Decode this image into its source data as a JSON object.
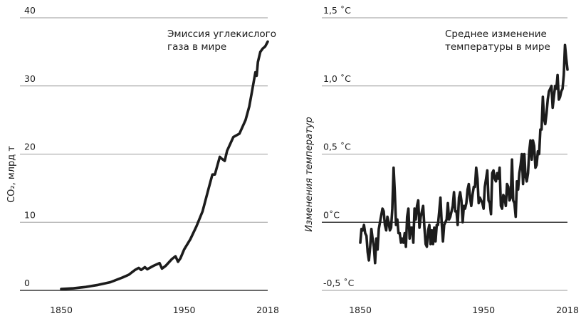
{
  "chart_data": [
    {
      "type": "line",
      "annotation": [
        "Эмиссия углекислого",
        "газа в мире"
      ],
      "ylabel": "CO₂, млрд т",
      "xlim": [
        1850,
        2018
      ],
      "ylim": [
        0,
        40
      ],
      "xticks": [
        1850,
        1950,
        2018
      ],
      "yticks": [
        {
          "value": 0,
          "label": "0"
        },
        {
          "value": 10,
          "label": "10"
        },
        {
          "value": 20,
          "label": "20"
        },
        {
          "value": 30,
          "label": "30"
        },
        {
          "value": 40,
          "label": "40"
        }
      ],
      "grid": "horizontal",
      "series": [
        {
          "x": [
            1850,
            1860,
            1870,
            1880,
            1890,
            1900,
            1905,
            1910,
            1913,
            1915,
            1918,
            1920,
            1925,
            1930,
            1932,
            1935,
            1940,
            1943,
            1945,
            1947,
            1950,
            1955,
            1960,
            1965,
            1970,
            1973,
            1975,
            1979,
            1980,
            1983,
            1985,
            1990,
            1995,
            2000,
            2003,
            2005,
            2008,
            2009,
            2010,
            2012,
            2014,
            2016,
            2018
          ],
          "y": [
            0.2,
            0.3,
            0.5,
            0.8,
            1.2,
            1.9,
            2.3,
            3.0,
            3.3,
            3.0,
            3.4,
            3.1,
            3.6,
            4.0,
            3.2,
            3.6,
            4.6,
            5.0,
            4.2,
            4.7,
            6.0,
            7.5,
            9.4,
            11.6,
            15.0,
            17.0,
            17.0,
            19.6,
            19.4,
            19.0,
            20.5,
            22.5,
            23.0,
            25.0,
            27.0,
            29.0,
            32.0,
            31.5,
            33.5,
            35.0,
            35.5,
            35.8,
            36.5
          ]
        }
      ]
    },
    {
      "type": "line",
      "annotation": [
        "Среднее изменение",
        "температуры в мире"
      ],
      "ylabel": "Изменения температур",
      "xlim": [
        1850,
        2018
      ],
      "ylim": [
        -0.5,
        1.5
      ],
      "xticks": [
        1850,
        1950,
        2018
      ],
      "yticks": [
        {
          "value": -0.5,
          "label": "-0,5 ˚C"
        },
        {
          "value": 0,
          "label": "0˚C"
        },
        {
          "value": 0.5,
          "label": "0,5 ˚C"
        },
        {
          "value": 1.0,
          "label": "1,0 ˚C"
        },
        {
          "value": 1.5,
          "label": "1,5 ˚C"
        }
      ],
      "grid": "horizontal",
      "series": [
        {
          "x": [
            1850,
            1851,
            1852,
            1853,
            1854,
            1855,
            1856,
            1857,
            1858,
            1859,
            1860,
            1861,
            1862,
            1863,
            1864,
            1865,
            1866,
            1867,
            1868,
            1869,
            1870,
            1871,
            1872,
            1873,
            1874,
            1875,
            1876,
            1877,
            1878,
            1879,
            1880,
            1881,
            1882,
            1883,
            1884,
            1885,
            1886,
            1887,
            1888,
            1889,
            1890,
            1891,
            1892,
            1893,
            1894,
            1895,
            1896,
            1897,
            1898,
            1899,
            1900,
            1901,
            1902,
            1903,
            1904,
            1905,
            1906,
            1907,
            1908,
            1909,
            1910,
            1911,
            1912,
            1913,
            1914,
            1915,
            1916,
            1917,
            1918,
            1919,
            1920,
            1921,
            1922,
            1923,
            1924,
            1925,
            1926,
            1927,
            1928,
            1929,
            1930,
            1931,
            1932,
            1933,
            1934,
            1935,
            1936,
            1937,
            1938,
            1939,
            1940,
            1941,
            1942,
            1943,
            1944,
            1945,
            1946,
            1947,
            1948,
            1949,
            1950,
            1951,
            1952,
            1953,
            1954,
            1955,
            1956,
            1957,
            1958,
            1959,
            1960,
            1961,
            1962,
            1963,
            1964,
            1965,
            1966,
            1967,
            1968,
            1969,
            1970,
            1971,
            1972,
            1973,
            1974,
            1975,
            1976,
            1977,
            1978,
            1979,
            1980,
            1981,
            1982,
            1983,
            1984,
            1985,
            1986,
            1987,
            1988,
            1989,
            1990,
            1991,
            1992,
            1993,
            1994,
            1995,
            1996,
            1997,
            1998,
            1999,
            2000,
            2001,
            2002,
            2003,
            2004,
            2005,
            2006,
            2007,
            2008,
            2009,
            2010,
            2011,
            2012,
            2013,
            2014,
            2015,
            2016,
            2017,
            2018
          ],
          "y": [
            -0.15,
            -0.05,
            -0.06,
            -0.02,
            -0.08,
            -0.1,
            -0.22,
            -0.28,
            -0.18,
            -0.05,
            -0.12,
            -0.18,
            -0.3,
            -0.12,
            -0.2,
            -0.05,
            0.0,
            0.05,
            0.1,
            0.08,
            -0.02,
            -0.06,
            0.04,
            0.0,
            -0.06,
            -0.04,
            0.1,
            0.4,
            0.22,
            -0.02,
            0.02,
            -0.08,
            -0.08,
            -0.15,
            -0.12,
            -0.15,
            -0.08,
            -0.18,
            0.04,
            0.1,
            -0.12,
            -0.04,
            -0.04,
            -0.15,
            0.1,
            0.02,
            0.12,
            0.16,
            -0.04,
            0.04,
            0.08,
            0.12,
            -0.04,
            -0.16,
            -0.18,
            -0.06,
            -0.02,
            -0.16,
            -0.06,
            -0.16,
            -0.04,
            -0.14,
            -0.02,
            -0.02,
            0.08,
            0.18,
            0.0,
            -0.14,
            -0.02,
            0.0,
            0.02,
            0.14,
            0.02,
            0.04,
            0.08,
            0.12,
            0.22,
            0.08,
            0.08,
            -0.02,
            0.18,
            0.22,
            0.16,
            0.0,
            0.12,
            0.1,
            0.14,
            0.24,
            0.28,
            0.18,
            0.12,
            0.2,
            0.26,
            0.26,
            0.4,
            0.32,
            0.14,
            0.18,
            0.16,
            0.14,
            0.1,
            0.26,
            0.32,
            0.38,
            0.16,
            0.14,
            0.06,
            0.36,
            0.38,
            0.32,
            0.3,
            0.36,
            0.32,
            0.4,
            0.12,
            0.1,
            0.2,
            0.18,
            0.12,
            0.28,
            0.26,
            0.16,
            0.18,
            0.46,
            0.16,
            0.14,
            0.04,
            0.3,
            0.24,
            0.36,
            0.42,
            0.5,
            0.28,
            0.5,
            0.34,
            0.3,
            0.36,
            0.52,
            0.6,
            0.46,
            0.6,
            0.56,
            0.4,
            0.42,
            0.52,
            0.5,
            0.68,
            0.68,
            0.92,
            0.76,
            0.72,
            0.8,
            0.9,
            0.96,
            0.98,
            1.0,
            0.84,
            0.92,
            1.0,
            0.98,
            1.08,
            0.9,
            0.92,
            0.96,
            0.98,
            1.08,
            1.3,
            1.2,
            1.12
          ]
        }
      ]
    }
  ]
}
